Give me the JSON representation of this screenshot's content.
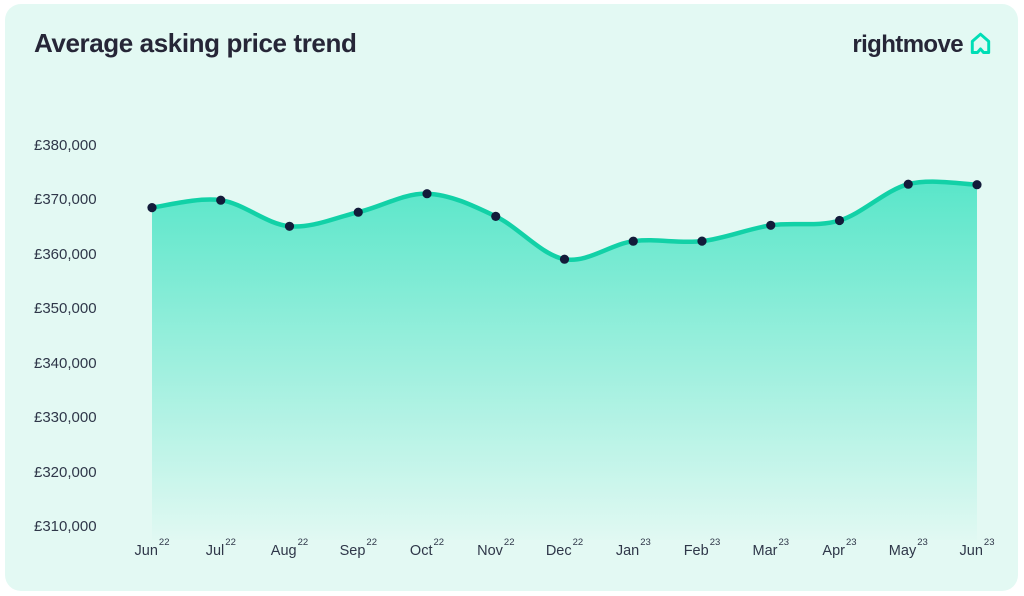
{
  "page": {
    "title": "Average asking price trend"
  },
  "logo": {
    "text": "rightmove",
    "icon": "rightmove-house-icon"
  },
  "colors": {
    "page_background": "#ffffff",
    "card_background": "#e3f9f3",
    "heading_text": "#262637",
    "axis_text": "#2f3749",
    "line": "#12d1a7",
    "area_fill_top": "#52e5c7",
    "marker": "#131b3a",
    "logo_icon": "#00deb6"
  },
  "chart_data": {
    "type": "area",
    "title": "Average asking price trend",
    "grid": false,
    "legend": false,
    "markers": true,
    "x_tick_labels": [
      {
        "month": "Jun",
        "year": "22"
      },
      {
        "month": "Jul",
        "year": "22"
      },
      {
        "month": "Aug",
        "year": "22"
      },
      {
        "month": "Sep",
        "year": "22"
      },
      {
        "month": "Oct",
        "year": "22"
      },
      {
        "month": "Nov",
        "year": "22"
      },
      {
        "month": "Dec",
        "year": "22"
      },
      {
        "month": "Jan",
        "year": "23"
      },
      {
        "month": "Feb",
        "year": "23"
      },
      {
        "month": "Mar",
        "year": "23"
      },
      {
        "month": "Apr",
        "year": "23"
      },
      {
        "month": "May",
        "year": "23"
      },
      {
        "month": "Jun",
        "year": "23"
      }
    ],
    "values": [
      368614,
      369968,
      365173,
      367760,
      371158,
      366999,
      359137,
      362438,
      362452,
      365357,
      366247,
      372894,
      372812
    ],
    "y_axis": {
      "min": 310000,
      "max": 380000,
      "ticks": [
        {
          "value": 380000,
          "label": "£380,000"
        },
        {
          "value": 370000,
          "label": "£370,000"
        },
        {
          "value": 360000,
          "label": "£360,000"
        },
        {
          "value": 350000,
          "label": "£350,000"
        },
        {
          "value": 340000,
          "label": "£340,000"
        },
        {
          "value": 330000,
          "label": "£330,000"
        },
        {
          "value": 320000,
          "label": "£320,000"
        },
        {
          "value": 310000,
          "label": "£310,000"
        }
      ]
    }
  }
}
